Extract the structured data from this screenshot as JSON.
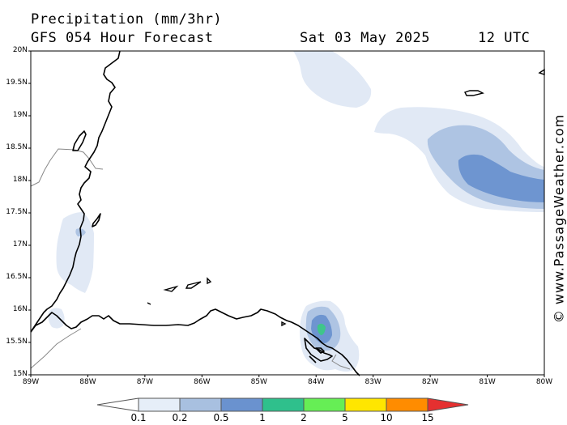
{
  "header": {
    "title": "Precipitation (mm/3hr)",
    "forecast": "GFS 054 Hour Forecast",
    "date": "Sat 03 May 2025",
    "time": "12 UTC"
  },
  "watermark": "© www.PassageWeather.com",
  "map": {
    "lat_labels": [
      "20N",
      "19.5N",
      "19N",
      "18.5N",
      "18N",
      "17.5N",
      "17N",
      "16.5N",
      "16N",
      "15.5N",
      "15N"
    ],
    "lon_labels": [
      "89W",
      "88W",
      "87W",
      "86W",
      "85W",
      "84W",
      "83W",
      "82W",
      "81W",
      "80W"
    ],
    "lat_range": [
      15,
      20
    ],
    "lon_range": [
      -89,
      -80
    ]
  },
  "legend": {
    "ticks": [
      "0.1",
      "0.2",
      "0.5",
      "1",
      "2",
      "5",
      "10",
      "15"
    ],
    "colors": [
      "#ffffff",
      "#e6eef8",
      "#a8c0e0",
      "#6a92cf",
      "#2fc08c",
      "#66ee55",
      "#ffe600",
      "#ff8c00",
      "#e53030"
    ]
  },
  "colors": {
    "light": "#e1e9f5",
    "medium": "#aec4e3",
    "strong": "#6e95d0",
    "green": "#3fc68a",
    "coast": "#000000",
    "border": "#888888"
  }
}
